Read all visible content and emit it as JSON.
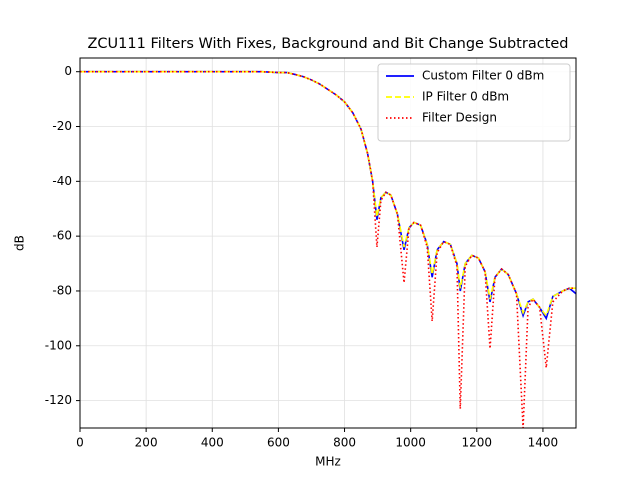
{
  "chart_data": {
    "type": "line",
    "title": "ZCU111 Filters With Fixes, Background and Bit Change Subtracted",
    "xlabel": "MHz",
    "ylabel": "dB",
    "x": [
      0,
      100,
      200,
      300,
      400,
      500,
      550,
      600,
      625,
      650,
      675,
      700,
      725,
      750,
      775,
      800,
      825,
      850,
      870,
      885,
      898,
      910,
      925,
      940,
      960,
      980,
      995,
      1010,
      1030,
      1050,
      1065,
      1080,
      1100,
      1120,
      1140,
      1150,
      1165,
      1185,
      1205,
      1225,
      1240,
      1255,
      1275,
      1295,
      1320,
      1340,
      1355,
      1370,
      1390,
      1410,
      1430,
      1460,
      1480,
      1500
    ],
    "series": [
      {
        "name": "Custom Filter 0 dBm",
        "color": "#0000ff",
        "linestyle": "solid",
        "values": [
          0,
          0,
          0,
          0,
          0,
          0,
          0,
          -0.3,
          -0.3,
          -1,
          -1.8,
          -3,
          -4.5,
          -6.5,
          -8.5,
          -11,
          -15,
          -21,
          -30,
          -40,
          -54,
          -46,
          -44,
          -45,
          -52,
          -65,
          -57,
          -55,
          -56,
          -63,
          -75,
          -65,
          -62,
          -63,
          -70,
          -80,
          -70,
          -67,
          -68,
          -73,
          -84,
          -75,
          -72,
          -74,
          -81,
          -89,
          -84,
          -83,
          -86,
          -90,
          -82,
          -80,
          -79,
          -81
        ]
      },
      {
        "name": "IP Filter 0 dBm",
        "color": "#ffff00",
        "linestyle": "dashed",
        "values": [
          0,
          0,
          0,
          0,
          0,
          0,
          0,
          -0.3,
          -0.3,
          -1,
          -1.8,
          -3,
          -4.5,
          -6.5,
          -8.5,
          -11,
          -15,
          -21,
          -30,
          -40,
          -53,
          -46,
          -44,
          -45,
          -52,
          -64,
          -57,
          -55,
          -56,
          -63,
          -74,
          -65,
          -62,
          -63,
          -70,
          -79,
          -70,
          -67,
          -68,
          -73,
          -83,
          -75,
          -72,
          -74,
          -81,
          -88,
          -84,
          -83,
          -86,
          -89,
          -82,
          -80,
          -79,
          -79
        ]
      },
      {
        "name": "Filter Design",
        "color": "#ff0000",
        "linestyle": "dotted",
        "values": [
          0,
          0,
          0,
          0,
          0,
          0,
          0,
          -0.3,
          -0.3,
          -1,
          -1.8,
          -3,
          -4.5,
          -6.5,
          -8.5,
          -11,
          -15,
          -21,
          -30,
          -40,
          -64,
          -47,
          -44,
          -45,
          -52,
          -77,
          -57,
          -55,
          -56,
          -64,
          -91,
          -66,
          -62,
          -63,
          -71,
          -123,
          -71,
          -67,
          -68,
          -73,
          -101,
          -75,
          -72,
          -74,
          -81,
          -130,
          -86,
          -83,
          -86,
          -108,
          -84,
          -80,
          -79,
          -79
        ]
      }
    ],
    "xlim": [
      0,
      1500
    ],
    "xticks": [
      0,
      200,
      400,
      600,
      800,
      1000,
      1200,
      1400
    ],
    "ylim": [
      -130,
      5
    ],
    "yticks": [
      0,
      -20,
      -40,
      -60,
      -80,
      -100,
      -120
    ],
    "grid": true,
    "legend": "upper right"
  }
}
